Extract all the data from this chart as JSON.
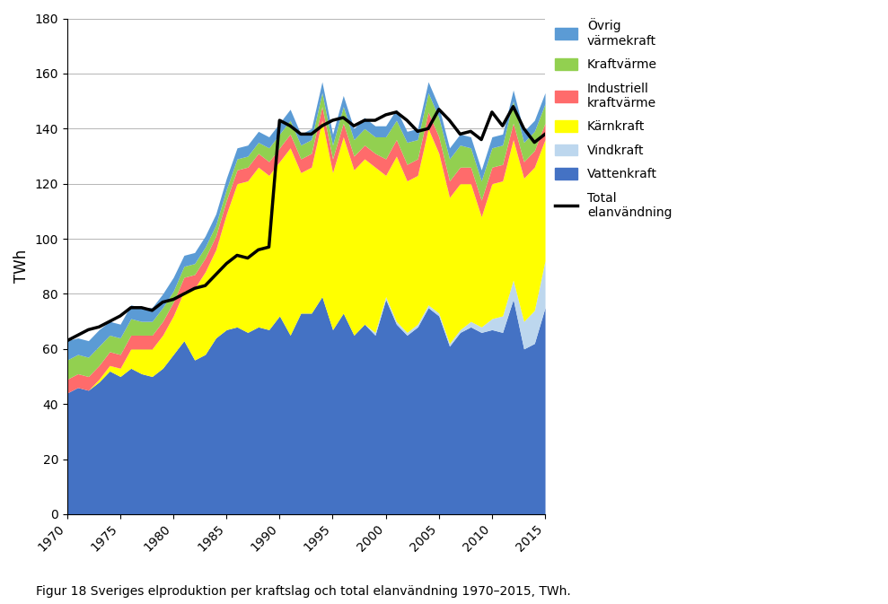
{
  "years": [
    1970,
    1971,
    1972,
    1973,
    1974,
    1975,
    1976,
    1977,
    1978,
    1979,
    1980,
    1981,
    1982,
    1983,
    1984,
    1985,
    1986,
    1987,
    1988,
    1989,
    1990,
    1991,
    1992,
    1993,
    1994,
    1995,
    1996,
    1997,
    1998,
    1999,
    2000,
    2001,
    2002,
    2003,
    2004,
    2005,
    2006,
    2007,
    2008,
    2009,
    2010,
    2011,
    2012,
    2013,
    2014,
    2015
  ],
  "vattenkraft": [
    44,
    46,
    45,
    48,
    52,
    50,
    53,
    51,
    50,
    53,
    58,
    63,
    56,
    58,
    64,
    67,
    68,
    66,
    68,
    67,
    72,
    65,
    73,
    73,
    79,
    67,
    73,
    65,
    69,
    65,
    78,
    69,
    65,
    68,
    75,
    72,
    61,
    66,
    68,
    66,
    67,
    66,
    78,
    60,
    62,
    75
  ],
  "vindkraft": [
    0,
    0,
    0,
    0,
    0,
    0,
    0,
    0,
    0,
    0,
    0,
    0,
    0,
    0,
    0,
    0,
    0,
    0,
    0,
    0,
    0,
    0,
    0,
    0,
    0,
    0,
    0,
    0,
    0,
    1,
    1,
    1,
    1,
    1,
    1,
    1,
    1,
    1,
    2,
    2,
    4,
    6,
    7,
    10,
    12,
    17
  ],
  "karnkraft": [
    0,
    0,
    0,
    1,
    2,
    3,
    7,
    9,
    10,
    12,
    14,
    18,
    26,
    30,
    32,
    42,
    52,
    55,
    58,
    56,
    56,
    68,
    51,
    53,
    64,
    57,
    64,
    60,
    60,
    60,
    44,
    60,
    55,
    54,
    64,
    58,
    53,
    53,
    50,
    40,
    49,
    49,
    51,
    52,
    52,
    44
  ],
  "ind_kraftvarme": [
    5,
    5,
    5,
    5,
    5,
    5,
    5,
    5,
    5,
    5,
    5,
    5,
    5,
    5,
    5,
    5,
    5,
    5,
    5,
    5,
    5,
    5,
    5,
    5,
    5,
    5,
    5,
    5,
    5,
    5,
    6,
    6,
    6,
    6,
    6,
    6,
    6,
    6,
    6,
    6,
    6,
    6,
    6,
    6,
    6,
    6
  ],
  "kraftvarme": [
    7,
    7,
    7,
    7,
    6,
    6,
    6,
    5,
    5,
    5,
    4,
    4,
    4,
    4,
    4,
    4,
    4,
    4,
    4,
    5,
    5,
    5,
    5,
    5,
    5,
    5,
    6,
    6,
    6,
    6,
    8,
    7,
    8,
    7,
    7,
    7,
    8,
    8,
    7,
    7,
    7,
    7,
    8,
    7,
    7,
    7
  ],
  "ovrig_varme": [
    7,
    6,
    6,
    6,
    5,
    5,
    5,
    5,
    5,
    5,
    5,
    4,
    4,
    4,
    4,
    4,
    4,
    4,
    4,
    4,
    4,
    4,
    4,
    4,
    4,
    4,
    4,
    4,
    4,
    4,
    4,
    4,
    4,
    4,
    4,
    4,
    4,
    4,
    4,
    4,
    4,
    4,
    4,
    4,
    4,
    4
  ],
  "total_elanv": [
    63,
    65,
    67,
    68,
    70,
    72,
    75,
    75,
    74,
    77,
    78,
    80,
    82,
    83,
    87,
    91,
    94,
    93,
    96,
    97,
    143,
    141,
    138,
    138,
    141,
    143,
    144,
    141,
    143,
    143,
    145,
    146,
    143,
    139,
    140,
    147,
    143,
    138,
    139,
    136,
    146,
    141,
    148,
    140,
    135,
    138
  ],
  "colors": {
    "vattenkraft": "#4472C4",
    "vindkraft": "#BDD7EE",
    "karnkraft": "#FFFF00",
    "ind_kraftvarme": "#FF6B6B",
    "kraftvarme": "#92D050",
    "ovrig_varme": "#5B9BD5"
  },
  "legend_labels": {
    "ovrig_varme": "Övrig\nvärmekraft",
    "kraftvarme": "Kraftvärme",
    "ind_kraftvarme": "Industriell\nkraftvärme",
    "karnkraft": "Kärnkraft",
    "vindkraft": "Vindkraft",
    "vattenkraft": "Vattenkraft",
    "total": "Total\nelanvändning"
  },
  "ylabel": "TWh",
  "ylim": [
    0,
    180
  ],
  "yticks": [
    0,
    20,
    40,
    60,
    80,
    100,
    120,
    140,
    160,
    180
  ],
  "xlim": [
    1970,
    2015
  ],
  "caption": "Figur 18 Sveriges elproduktion per kraftslag och total elanvändning 1970–2015, TWh."
}
